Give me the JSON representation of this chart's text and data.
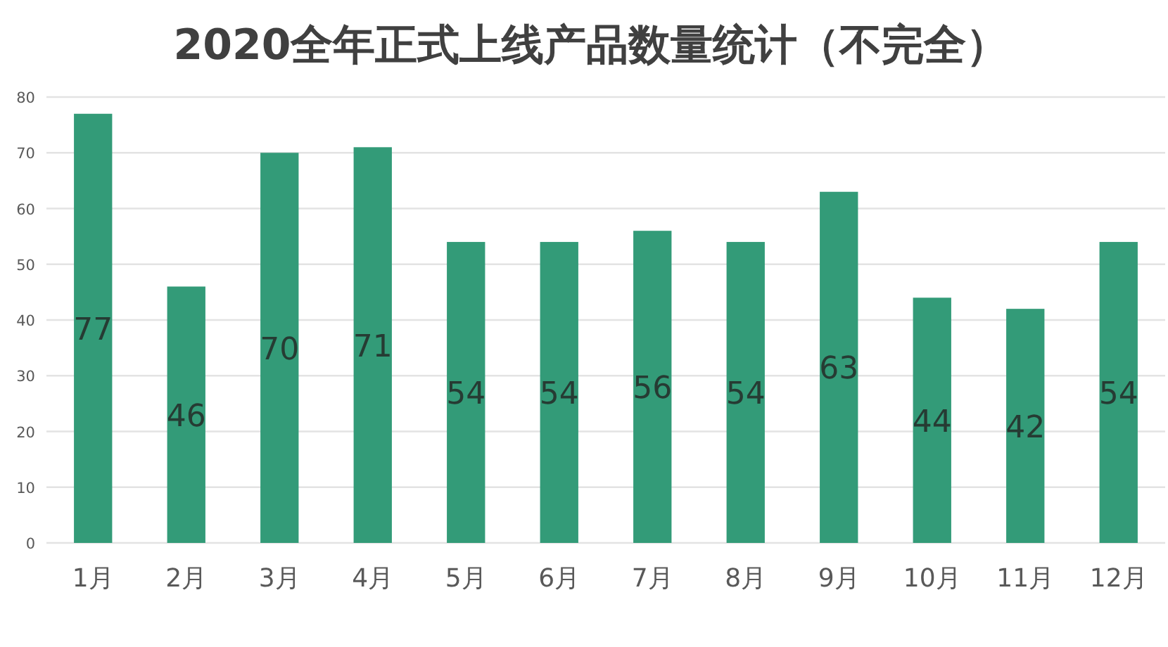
{
  "chart_data": {
    "type": "bar",
    "title": "2020全年正式上线产品数量统计（不完全）",
    "categories": [
      "1月",
      "2月",
      "3月",
      "4月",
      "5月",
      "6月",
      "7月",
      "8月",
      "9月",
      "10月",
      "11月",
      "12月"
    ],
    "values": [
      77,
      46,
      70,
      71,
      54,
      54,
      56,
      54,
      63,
      44,
      42,
      54
    ],
    "color": "#339b78",
    "ylim": [
      0,
      80
    ],
    "yticks": [
      0,
      10,
      20,
      30,
      40,
      50,
      60,
      70,
      80
    ],
    "grid": "y",
    "data_labels": true
  }
}
